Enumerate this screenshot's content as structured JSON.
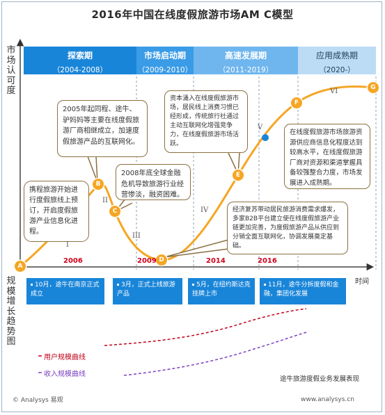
{
  "title": "2016年中国在线度假旅游市场AM C模型",
  "y_axis_label": "市场认可度",
  "y_axis2_label": "规模增长趋势图",
  "x_axis_label": "时间",
  "phases": [
    {
      "name": "探索期",
      "years": "（2004-2008）"
    },
    {
      "name": "市场启动期",
      "years": "（2009-2010）"
    },
    {
      "name": "高速发展期",
      "years": "（2011-2019）"
    },
    {
      "name": "应用成熟期",
      "years": "（2020-）"
    }
  ],
  "stages": [
    "I",
    "II",
    "III",
    "IV",
    "V",
    "VI"
  ],
  "points": [
    "A",
    "B",
    "C",
    "D",
    "E",
    "F",
    "G"
  ],
  "year_marks": [
    "2006",
    "2009",
    "2014",
    "2016"
  ],
  "bubbles": {
    "a": "携程旅游开始进行度假旅线上预订，开启度假旅游产业信息化进程。",
    "b": "2005年起同程、途牛、驴妈妈等主要在线度假旅游厂商相继成立，加速度假旅游产品的互联网化。",
    "c": "2008年底全球金融危机导致旅游行业经营惨淡，融资困难。",
    "e": "资本涌入在线度假旅游市场，居民线上消费习惯已经形成，传统旅行社通过主动互联网化增强竞争力，在线度假旅游市场活跃。",
    "f": "在线度假旅游市场旅游资源供应商信息化程度达到较高水平，在线度假旅游厂商对资源和渠道掌握具备较强整合力度，市场发展进入成熟期。",
    "d": "经济复苏带动居民旅游消费需求爆发，多家B2B平台建立使在线度假旅游产业链更加完善，为度假旅游产品从供应到分销全面互联网化，协调发展奠定基础。"
  },
  "events": [
    "10月，途牛在南京正式成立",
    "3月，正式上线旅游产品",
    "5月，在纽约斯达克挂牌上市",
    "11月，途牛分拆度假和金融，集团化发展"
  ],
  "legend": {
    "user": "用户规模曲线",
    "revenue": "收入规模曲线"
  },
  "colors": {
    "user_curve": "#c0001a",
    "revenue_curve": "#7a3fbf",
    "main_curve": "#f5a623",
    "accent": "#1985d9"
  },
  "caption": "途牛旅游度假业务发展表现",
  "footer_left": "© Analysys 易观",
  "footer_right": "www.analysys.cn"
}
